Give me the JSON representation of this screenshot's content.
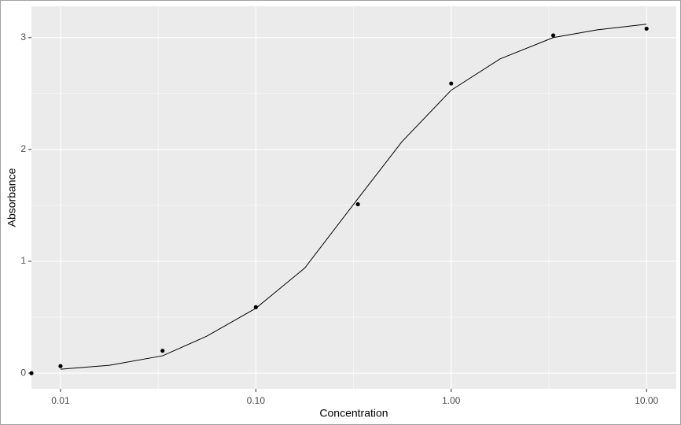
{
  "chart_data": {
    "type": "scatter",
    "x_label": "Concentration",
    "y_label": "Absorbance",
    "x": [
      0.0071,
      0.01,
      0.0333,
      0.1,
      0.333,
      1,
      3.33,
      10
    ],
    "values": [
      0,
      0.063,
      0.2,
      0.59,
      1.51,
      2.59,
      3.02,
      3.08
    ],
    "color": "#000000",
    "fit": {
      "x": [
        0.01,
        0.0178,
        0.0333,
        0.056,
        0.1,
        0.178,
        0.333,
        0.56,
        1,
        1.78,
        3.33,
        5.6,
        10
      ],
      "values": [
        0.035,
        0.07,
        0.155,
        0.33,
        0.58,
        0.94,
        1.56,
        2.07,
        2.53,
        2.81,
        3.0,
        3.07,
        3.12
      ],
      "color": "#000000"
    },
    "x_log": true,
    "xlim": [
      0.0071,
      14.2
    ],
    "ylim": [
      -0.14,
      3.28
    ],
    "xticks": [
      {
        "value": 0.01,
        "label": "0.01"
      },
      {
        "value": 0.1,
        "label": "0.10"
      },
      {
        "value": 1,
        "label": "1.00"
      },
      {
        "value": 10,
        "label": "10.00"
      }
    ],
    "yticks": [
      0,
      1,
      2,
      3
    ],
    "grid": true
  }
}
